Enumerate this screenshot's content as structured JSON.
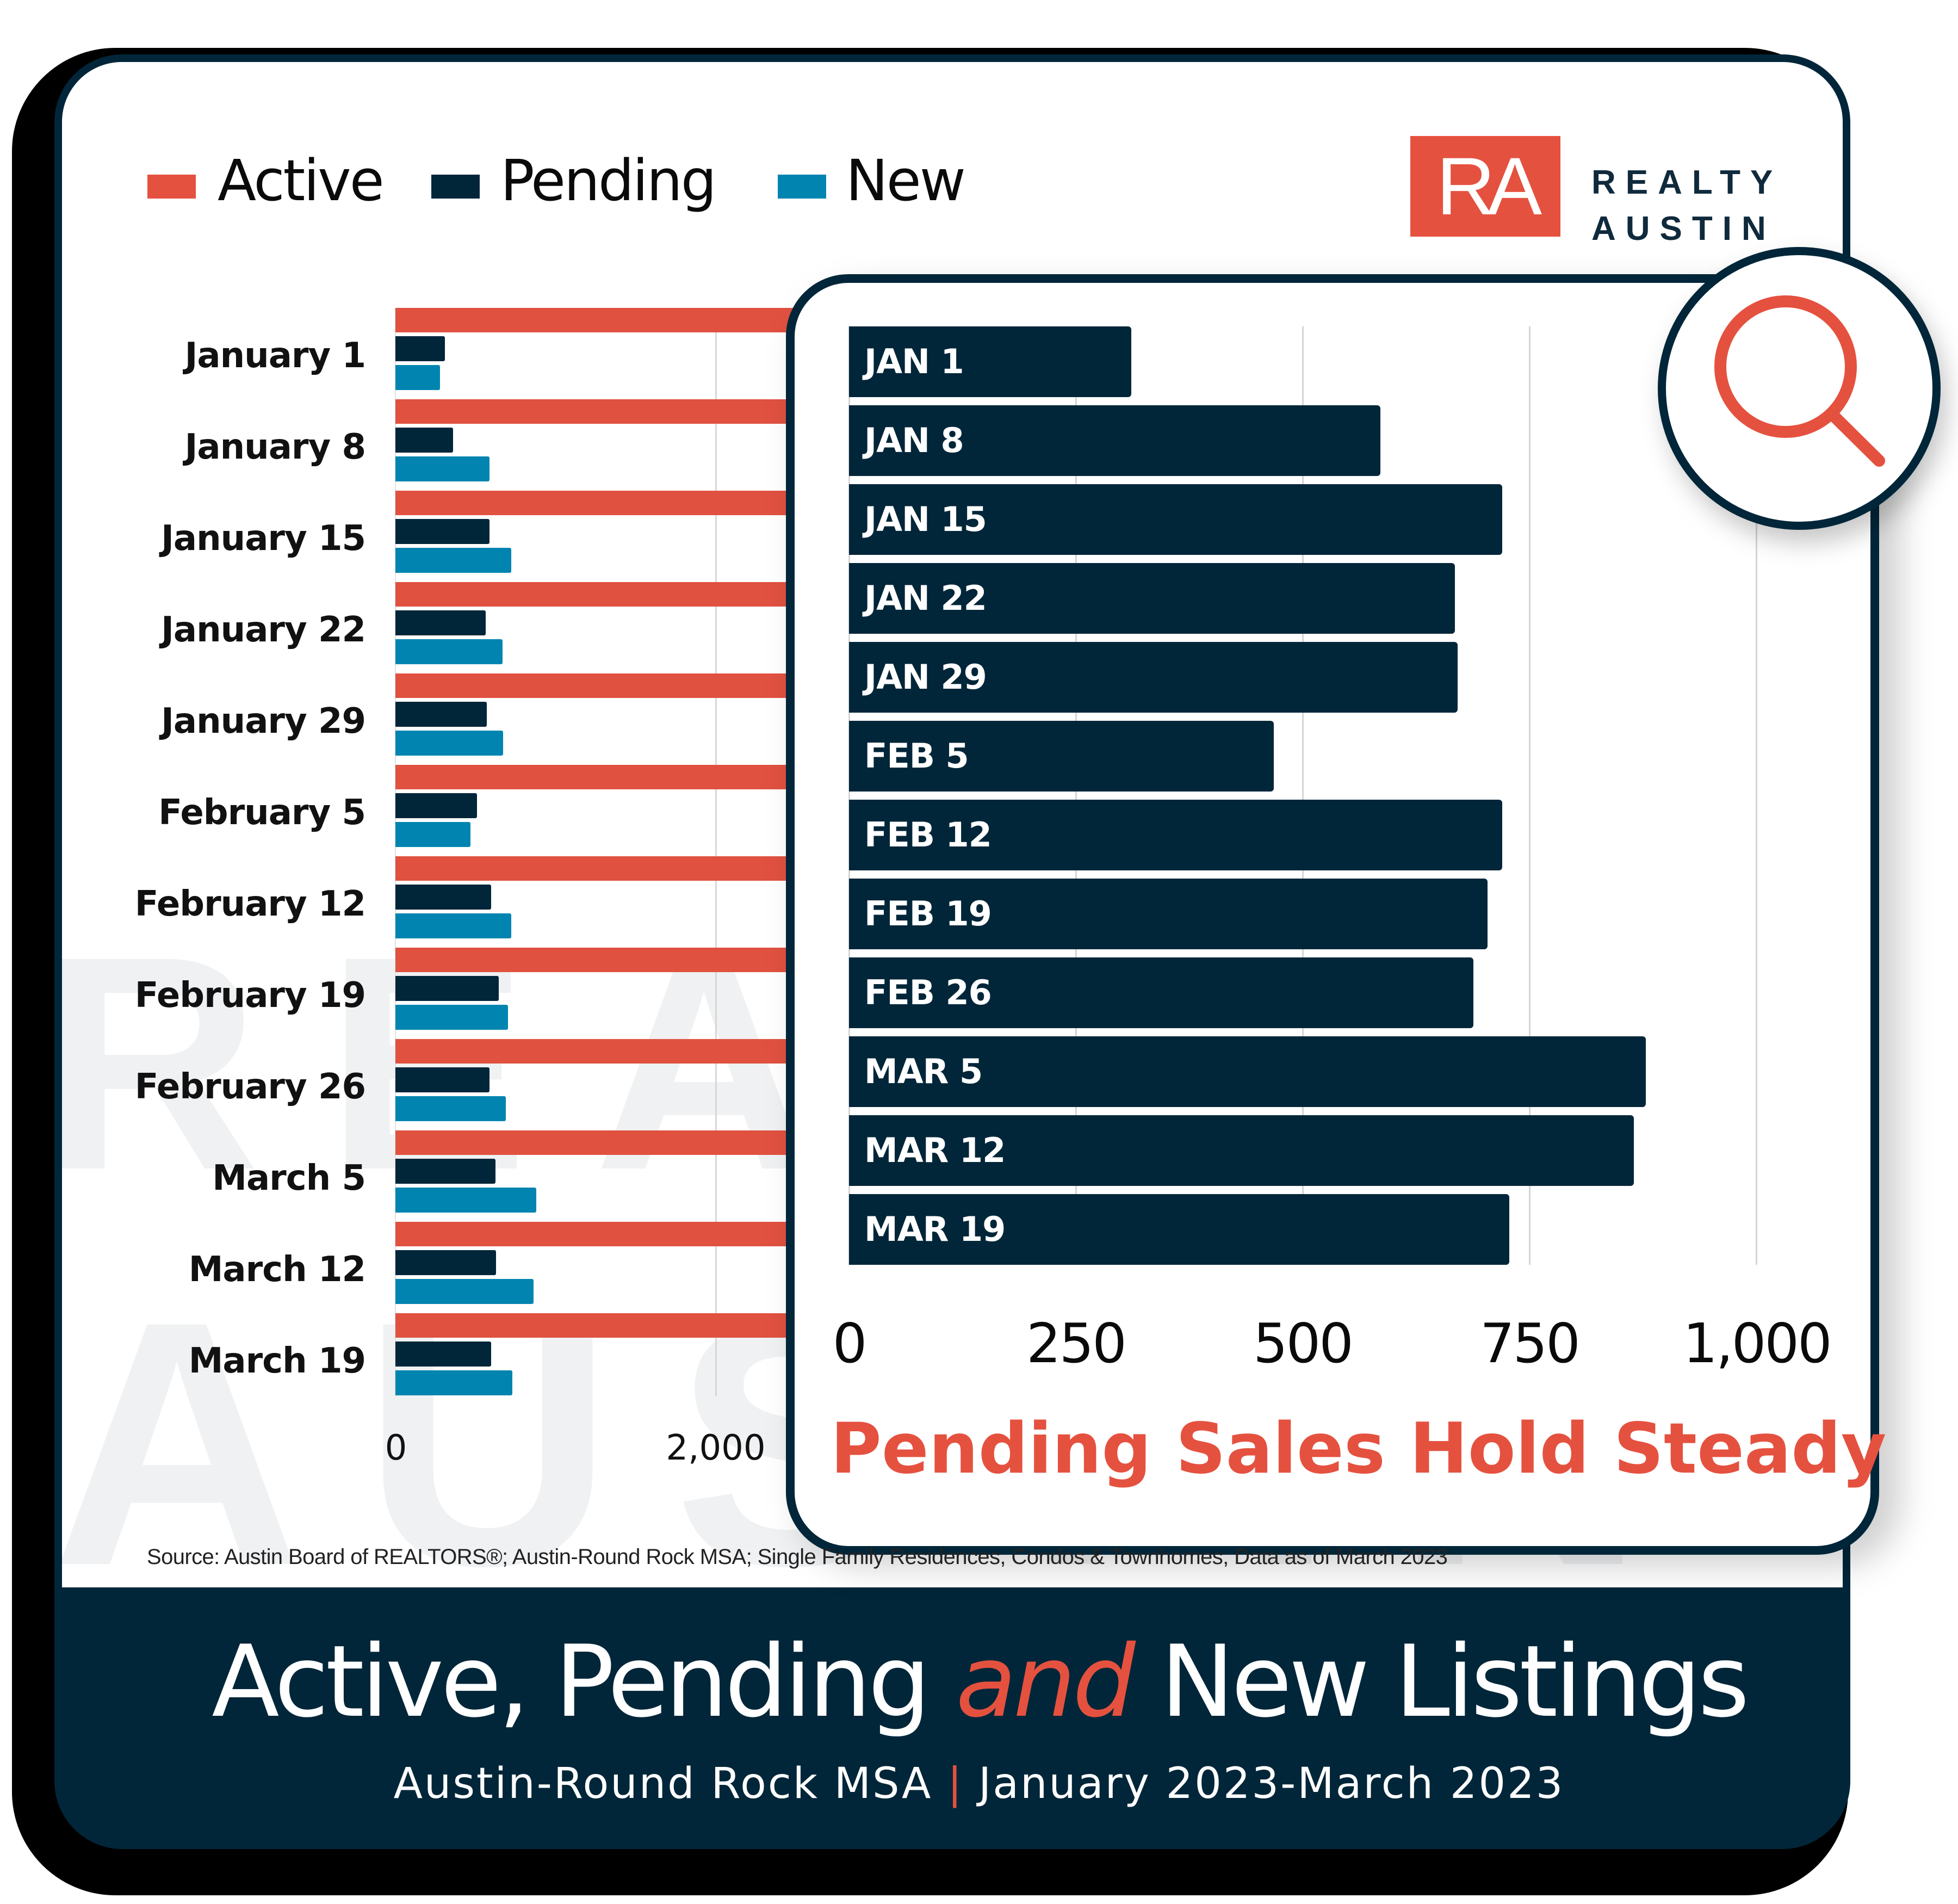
{
  "legend": [
    {
      "label": "Active",
      "color": "#e5513f"
    },
    {
      "label": "Pending",
      "color": "#022639"
    },
    {
      "label": "New",
      "color": "#0185b0"
    }
  ],
  "logo": {
    "mark": "RA",
    "line1": "REALTY",
    "line2": "AUSTIN"
  },
  "watermark": {
    "line1": "REA",
    "line2": "AUSTIN"
  },
  "colors": {
    "active": "#e5513f",
    "pending": "#022639",
    "new": "#0185b0",
    "banner": "#022639",
    "accent": "#e5513f"
  },
  "main_chart": {
    "x_ticks": [
      "0",
      "2,000"
    ]
  },
  "inset": {
    "title": "Pending Sales Hold Steady",
    "x_ticks": [
      "0",
      "250",
      "500",
      "750",
      "1,000"
    ],
    "icon": "magnifier-icon"
  },
  "source": "Source: Austin Board of REALTORS®; Austin-Round Rock MSA; Single Family Residences, Condos & Townhomes; Data as of March 2023",
  "banner": {
    "title_part1": "Active, Pending ",
    "title_and": "and",
    "title_part2": " New Listings",
    "subtitle_part1": "Austin-Round Rock MSA ",
    "subtitle_sep": "|",
    "subtitle_part2": " January 2023-March 2023"
  },
  "chart_data": [
    {
      "type": "bar",
      "orientation": "horizontal",
      "title": "Active, Pending and New Listings",
      "subtitle": "Austin-Round Rock MSA | January 2023-March 2023",
      "categories": [
        "January 1",
        "January 8",
        "January 15",
        "January 22",
        "January 29",
        "February 5",
        "February 12",
        "February 19",
        "February 26",
        "March 5",
        "March 12",
        "March 19"
      ],
      "series": [
        {
          "name": "Active",
          "values": [
            null,
            null,
            null,
            null,
            null,
            null,
            null,
            null,
            null,
            null,
            null,
            null
          ],
          "note": "bars extend beyond visible range (hidden behind inset)"
        },
        {
          "name": "Pending",
          "values": [
            310,
            360,
            590,
            565,
            570,
            510,
            600,
            645,
            590,
            625,
            630,
            600
          ]
        },
        {
          "name": "New",
          "values": [
            280,
            590,
            725,
            670,
            675,
            470,
            725,
            705,
            690,
            880,
            865,
            730
          ]
        }
      ],
      "x_ticks": [
        "0",
        "2,000"
      ],
      "xlabel": "",
      "ylabel": "",
      "grid": true,
      "legend_position": "top-left"
    },
    {
      "type": "bar",
      "orientation": "horizontal",
      "title": "Pending Sales Hold Steady",
      "categories": [
        "JAN 1",
        "JAN 8",
        "JAN 15",
        "JAN 22",
        "JAN 29",
        "FEB 5",
        "FEB 12",
        "FEB 19",
        "FEB 26",
        "MAR 5",
        "MAR 12",
        "MAR 19"
      ],
      "series": [
        {
          "name": "Pending",
          "values": [
            311,
            586,
            720,
            668,
            671,
            468,
            720,
            704,
            688,
            878,
            865,
            728
          ]
        }
      ],
      "x_ticks": [
        "0",
        "250",
        "500",
        "750",
        "1,000"
      ],
      "xlim": [
        0,
        1000
      ],
      "grid": true
    }
  ]
}
